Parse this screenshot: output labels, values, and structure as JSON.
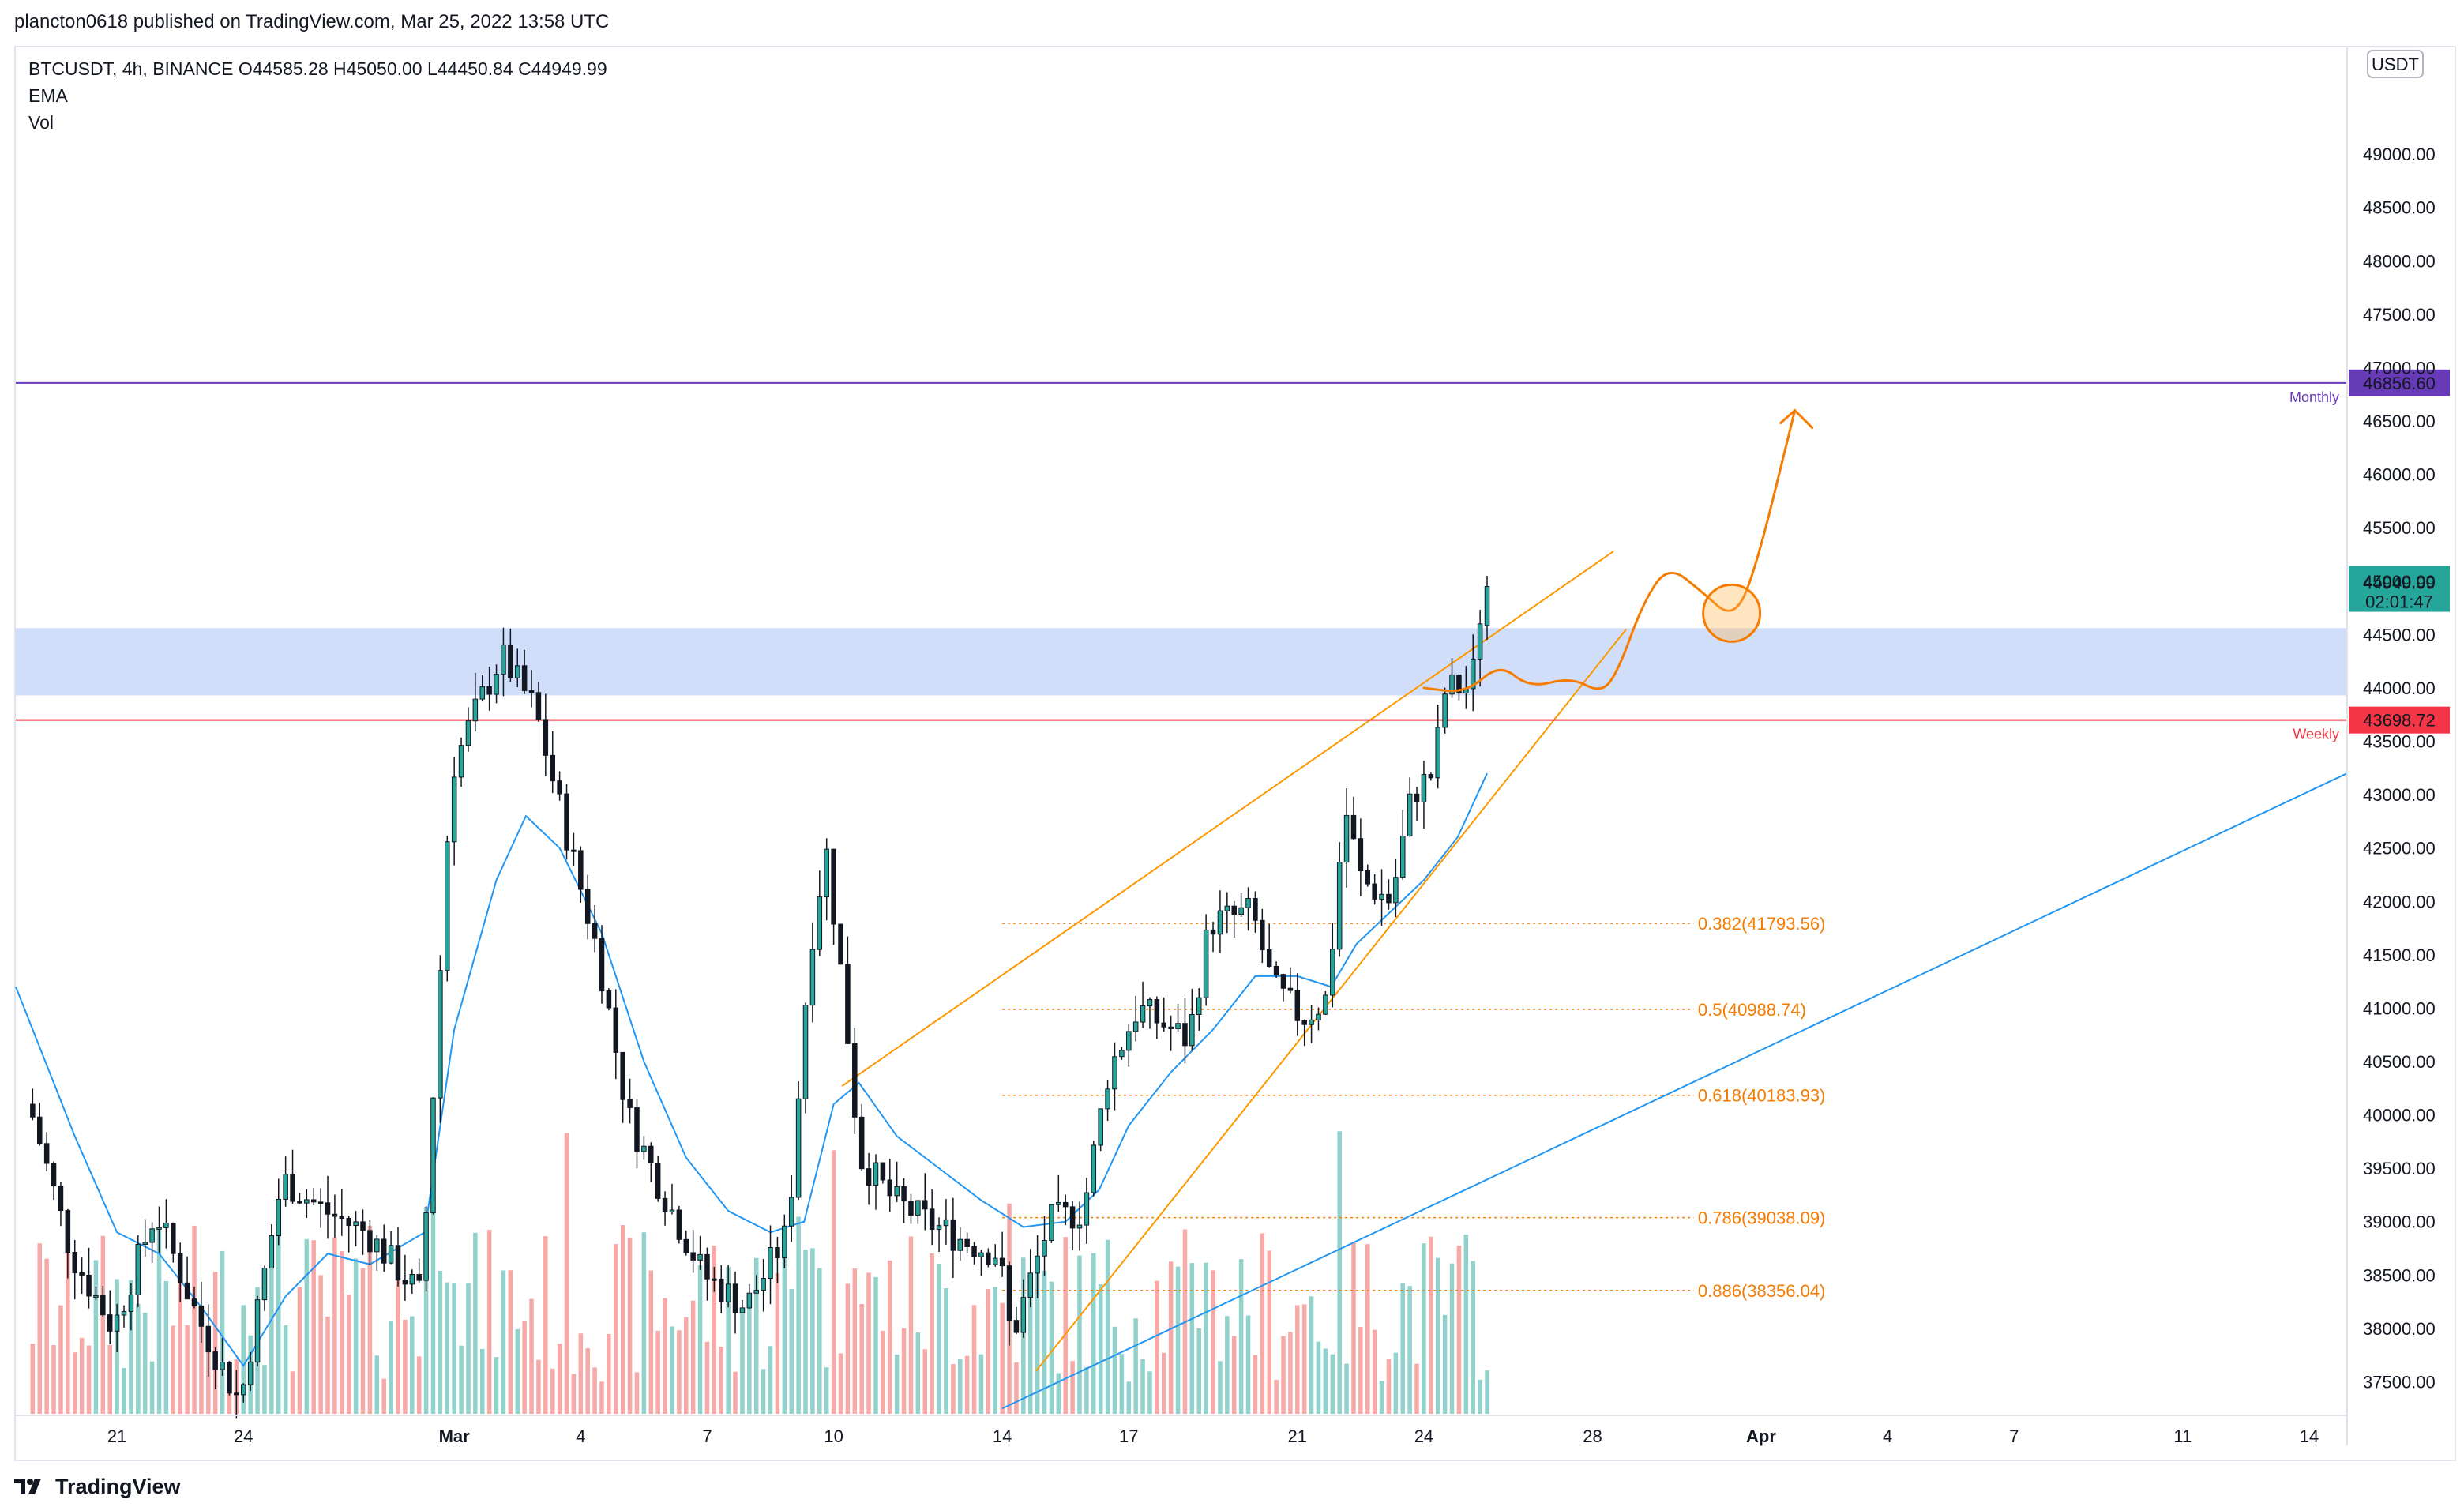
{
  "header": {
    "text": "plancton0618 published on TradingView.com, Mar 25, 2022 13:58 UTC"
  },
  "legend": {
    "line1": "BTCUSDT, 4h, BINANCE  O44585.28  H45050.00  L44450.84  C44949.99",
    "line2": "EMA",
    "line3": "Vol"
  },
  "footer": {
    "brand": "TradingView"
  },
  "colors": {
    "up": "#26a69a",
    "down": "#ef5350",
    "ema": "#2196f3",
    "fib": "#f57c00",
    "channel": "#ff9800",
    "zone": "#c8d8f8",
    "weekly": "#f23645",
    "monthly": "#673ab7"
  },
  "chart_data": {
    "type": "candlestick",
    "symbol": "BTCUSDT",
    "interval": "4h",
    "exchange": "BINANCE",
    "ohlc": {
      "open": 44585.28,
      "high": 45050.0,
      "low": 44450.84,
      "close": 44949.99
    },
    "currency_badge": "USDT",
    "ylim": [
      37200,
      50000
    ],
    "y_ticks": [
      37500,
      38000,
      38500,
      39000,
      39500,
      40000,
      40500,
      41000,
      41500,
      42000,
      42500,
      43000,
      43500,
      44000,
      44500,
      45000,
      45500,
      46000,
      46500,
      47000,
      47500,
      48000,
      48500,
      49000
    ],
    "y_tick_labels": [
      "37500.00",
      "38000.00",
      "38500.00",
      "39000.00",
      "39500.00",
      "40000.00",
      "40500.00",
      "41000.00",
      "41500.00",
      "42000.00",
      "42500.00",
      "43000.00",
      "43500.00",
      "44000.00",
      "44500.00",
      "45000.00",
      "45500.00",
      "46000.00",
      "46500.00",
      "47000.00",
      "47500.00",
      "48000.00",
      "48500.00",
      "49000.00"
    ],
    "x_range_days": [
      18.7,
      46.2
    ],
    "x_ticks": [
      {
        "day": 21,
        "label": "21"
      },
      {
        "day": 24,
        "label": "24"
      },
      {
        "day": 29,
        "label": "Mar"
      },
      {
        "day": 32,
        "label": "4"
      },
      {
        "day": 35,
        "label": "7"
      },
      {
        "day": 38,
        "label": "10"
      },
      {
        "day": 42,
        "label": "14"
      },
      {
        "day": 45,
        "label": "17"
      },
      {
        "day": 49,
        "label": "21"
      },
      {
        "day": 52,
        "label": "24"
      },
      {
        "day": 56,
        "label": "28"
      },
      {
        "day": 60,
        "label": "Apr"
      },
      {
        "day": 63,
        "label": "4"
      },
      {
        "day": 66,
        "label": "7"
      },
      {
        "day": 70,
        "label": "11"
      },
      {
        "day": 73,
        "label": "14"
      }
    ],
    "x_domain_days": [
      18.6,
      73.9
    ],
    "price_path": [
      [
        19.0,
        40100
      ],
      [
        20.0,
        38700
      ],
      [
        21.0,
        38000
      ],
      [
        22.0,
        39100
      ],
      [
        23.0,
        38100
      ],
      [
        24.0,
        37300
      ],
      [
        25.0,
        39400
      ],
      [
        26.0,
        39100
      ],
      [
        27.0,
        38900
      ],
      [
        28.3,
        38300
      ],
      [
        28.7,
        41000
      ],
      [
        29.0,
        43200
      ],
      [
        29.5,
        43700
      ],
      [
        30.2,
        44300
      ],
      [
        31.0,
        43800
      ],
      [
        31.7,
        42700
      ],
      [
        32.5,
        41500
      ],
      [
        33.2,
        40000
      ],
      [
        34.0,
        39300
      ],
      [
        35.0,
        38500
      ],
      [
        36.0,
        38200
      ],
      [
        37.0,
        38900
      ],
      [
        37.5,
        41500
      ],
      [
        37.9,
        42500
      ],
      [
        38.3,
        41200
      ],
      [
        38.7,
        39600
      ],
      [
        39.5,
        39200
      ],
      [
        40.3,
        39000
      ],
      [
        41.3,
        38800
      ],
      [
        42.0,
        38700
      ],
      [
        42.3,
        37900
      ],
      [
        43.2,
        39000
      ],
      [
        44.0,
        39100
      ],
      [
        44.6,
        40400
      ],
      [
        45.3,
        41000
      ],
      [
        46.5,
        40700
      ],
      [
        47.0,
        41800
      ],
      [
        48.0,
        41900
      ],
      [
        48.5,
        41200
      ],
      [
        49.2,
        40900
      ],
      [
        49.8,
        41100
      ],
      [
        50.2,
        42900
      ],
      [
        50.6,
        42200
      ],
      [
        51.3,
        42000
      ],
      [
        51.8,
        43000
      ],
      [
        52.3,
        43200
      ],
      [
        52.6,
        44000
      ],
      [
        53.2,
        44000
      ],
      [
        53.5,
        44950
      ]
    ],
    "ema_path": [
      [
        18.6,
        41200
      ],
      [
        20.0,
        39800
      ],
      [
        21.0,
        38900
      ],
      [
        22.0,
        38700
      ],
      [
        23.0,
        38200
      ],
      [
        24.0,
        37650
      ],
      [
        25.0,
        38300
      ],
      [
        26.0,
        38700
      ],
      [
        27.0,
        38600
      ],
      [
        28.3,
        38900
      ],
      [
        29.0,
        40800
      ],
      [
        30.0,
        42200
      ],
      [
        30.7,
        42800
      ],
      [
        31.5,
        42500
      ],
      [
        32.5,
        41700
      ],
      [
        33.5,
        40500
      ],
      [
        34.5,
        39600
      ],
      [
        35.5,
        39100
      ],
      [
        36.5,
        38900
      ],
      [
        37.3,
        39000
      ],
      [
        38.0,
        40100
      ],
      [
        38.6,
        40300
      ],
      [
        39.5,
        39800
      ],
      [
        40.5,
        39500
      ],
      [
        41.5,
        39200
      ],
      [
        42.5,
        38950
      ],
      [
        43.5,
        39000
      ],
      [
        44.3,
        39300
      ],
      [
        45.0,
        39900
      ],
      [
        46.0,
        40400
      ],
      [
        47.0,
        40800
      ],
      [
        48.0,
        41300
      ],
      [
        49.0,
        41300
      ],
      [
        49.8,
        41200
      ],
      [
        50.4,
        41600
      ],
      [
        51.2,
        41900
      ],
      [
        52.0,
        42200
      ],
      [
        52.8,
        42600
      ],
      [
        53.5,
        43200
      ]
    ],
    "levels": [
      {
        "name": "Monthly",
        "value": 46856.6,
        "label": "46856.60",
        "color": "#673ab7"
      },
      {
        "name": "Weekly",
        "value": 43698.72,
        "label": "43698.72",
        "color": "#f23645"
      }
    ],
    "last_price": {
      "value": 44949.99,
      "label": "44949.99",
      "countdown": "02:01:47"
    },
    "zone": {
      "from": 43930,
      "to": 44560
    },
    "fib_levels": [
      {
        "ratio": "0.382",
        "value": 41793.56,
        "label": "0.382(41793.56)"
      },
      {
        "ratio": "0.5",
        "value": 40988.74,
        "label": "0.5(40988.74)"
      },
      {
        "ratio": "0.618",
        "value": 40183.93,
        "label": "0.618(40183.93)"
      },
      {
        "ratio": "0.786",
        "value": 39038.09,
        "label": "0.786(39038.09)"
      },
      {
        "ratio": "0.886",
        "value": 38356.04,
        "label": "0.886(38356.04)"
      }
    ],
    "channel": {
      "upper": [
        [
          38.2,
          40270
        ],
        [
          56.5,
          45280
        ]
      ],
      "lower": [
        [
          42.8,
          37600
        ],
        [
          56.8,
          44550
        ]
      ]
    },
    "trendline": [
      [
        42.0,
        37250
      ],
      [
        73.9,
        43200
      ]
    ],
    "projection": [
      [
        52.0,
        44000
      ],
      [
        53.0,
        43950
      ],
      [
        53.8,
        44230
      ],
      [
        54.5,
        44000
      ],
      [
        55.5,
        44100
      ],
      [
        56.2,
        43950
      ],
      [
        56.6,
        44150
      ],
      [
        57.2,
        44800
      ],
      [
        57.8,
        45150
      ],
      [
        58.6,
        44900
      ],
      [
        59.3,
        44650
      ],
      [
        59.8,
        45000
      ],
      [
        60.8,
        46600
      ]
    ],
    "target_circle": {
      "day": 59.3,
      "value": 44700
    }
  }
}
